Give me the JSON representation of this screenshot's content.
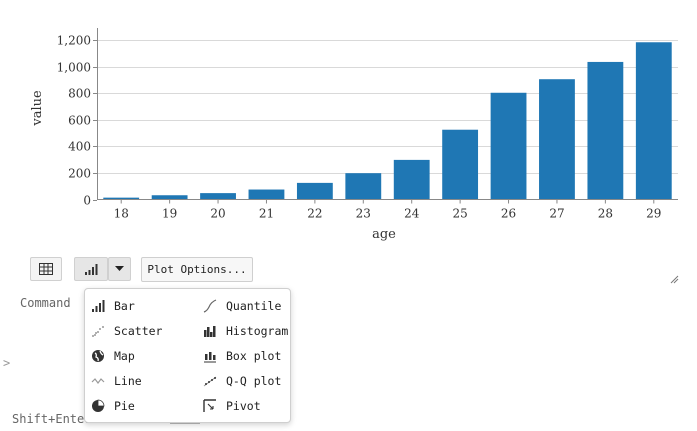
{
  "chart_data": {
    "type": "bar",
    "categories": [
      "18",
      "19",
      "20",
      "21",
      "22",
      "23",
      "24",
      "25",
      "26",
      "27",
      "28",
      "29"
    ],
    "values": [
      14,
      32,
      48,
      75,
      125,
      198,
      298,
      525,
      803,
      905,
      1035,
      1183
    ],
    "xlabel": "age",
    "ylabel": "value",
    "ylim": [
      0,
      1200
    ],
    "yticks": [
      "0",
      "200",
      "400",
      "600",
      "800",
      "1,000",
      "1,200"
    ],
    "grid": true,
    "bar_color": "#1f77b4"
  },
  "toolbar": {
    "plot_options_label": "Plot Options...",
    "table_icon": "table-icon",
    "chart_icon": "bar-chart-icon",
    "dropdown_icon": "caret-down-icon"
  },
  "side": {
    "command_label": "Command",
    "prompt_symbol": ">",
    "shift_enter_label": "Shift+Enter"
  },
  "menu": {
    "items": [
      {
        "label": "Bar",
        "icon": "bar-chart-icon"
      },
      {
        "label": "Scatter",
        "icon": "scatter-icon"
      },
      {
        "label": "Map",
        "icon": "globe-icon"
      },
      {
        "label": "Line",
        "icon": "line-chart-icon"
      },
      {
        "label": "Pie",
        "icon": "pie-chart-icon"
      },
      {
        "label": "Quantile",
        "icon": "quantile-icon"
      },
      {
        "label": "Histogram",
        "icon": "histogram-icon"
      },
      {
        "label": "Box plot",
        "icon": "box-plot-icon"
      },
      {
        "label": "Q-Q plot",
        "icon": "qq-plot-icon"
      },
      {
        "label": "Pivot",
        "icon": "pivot-icon"
      }
    ]
  }
}
